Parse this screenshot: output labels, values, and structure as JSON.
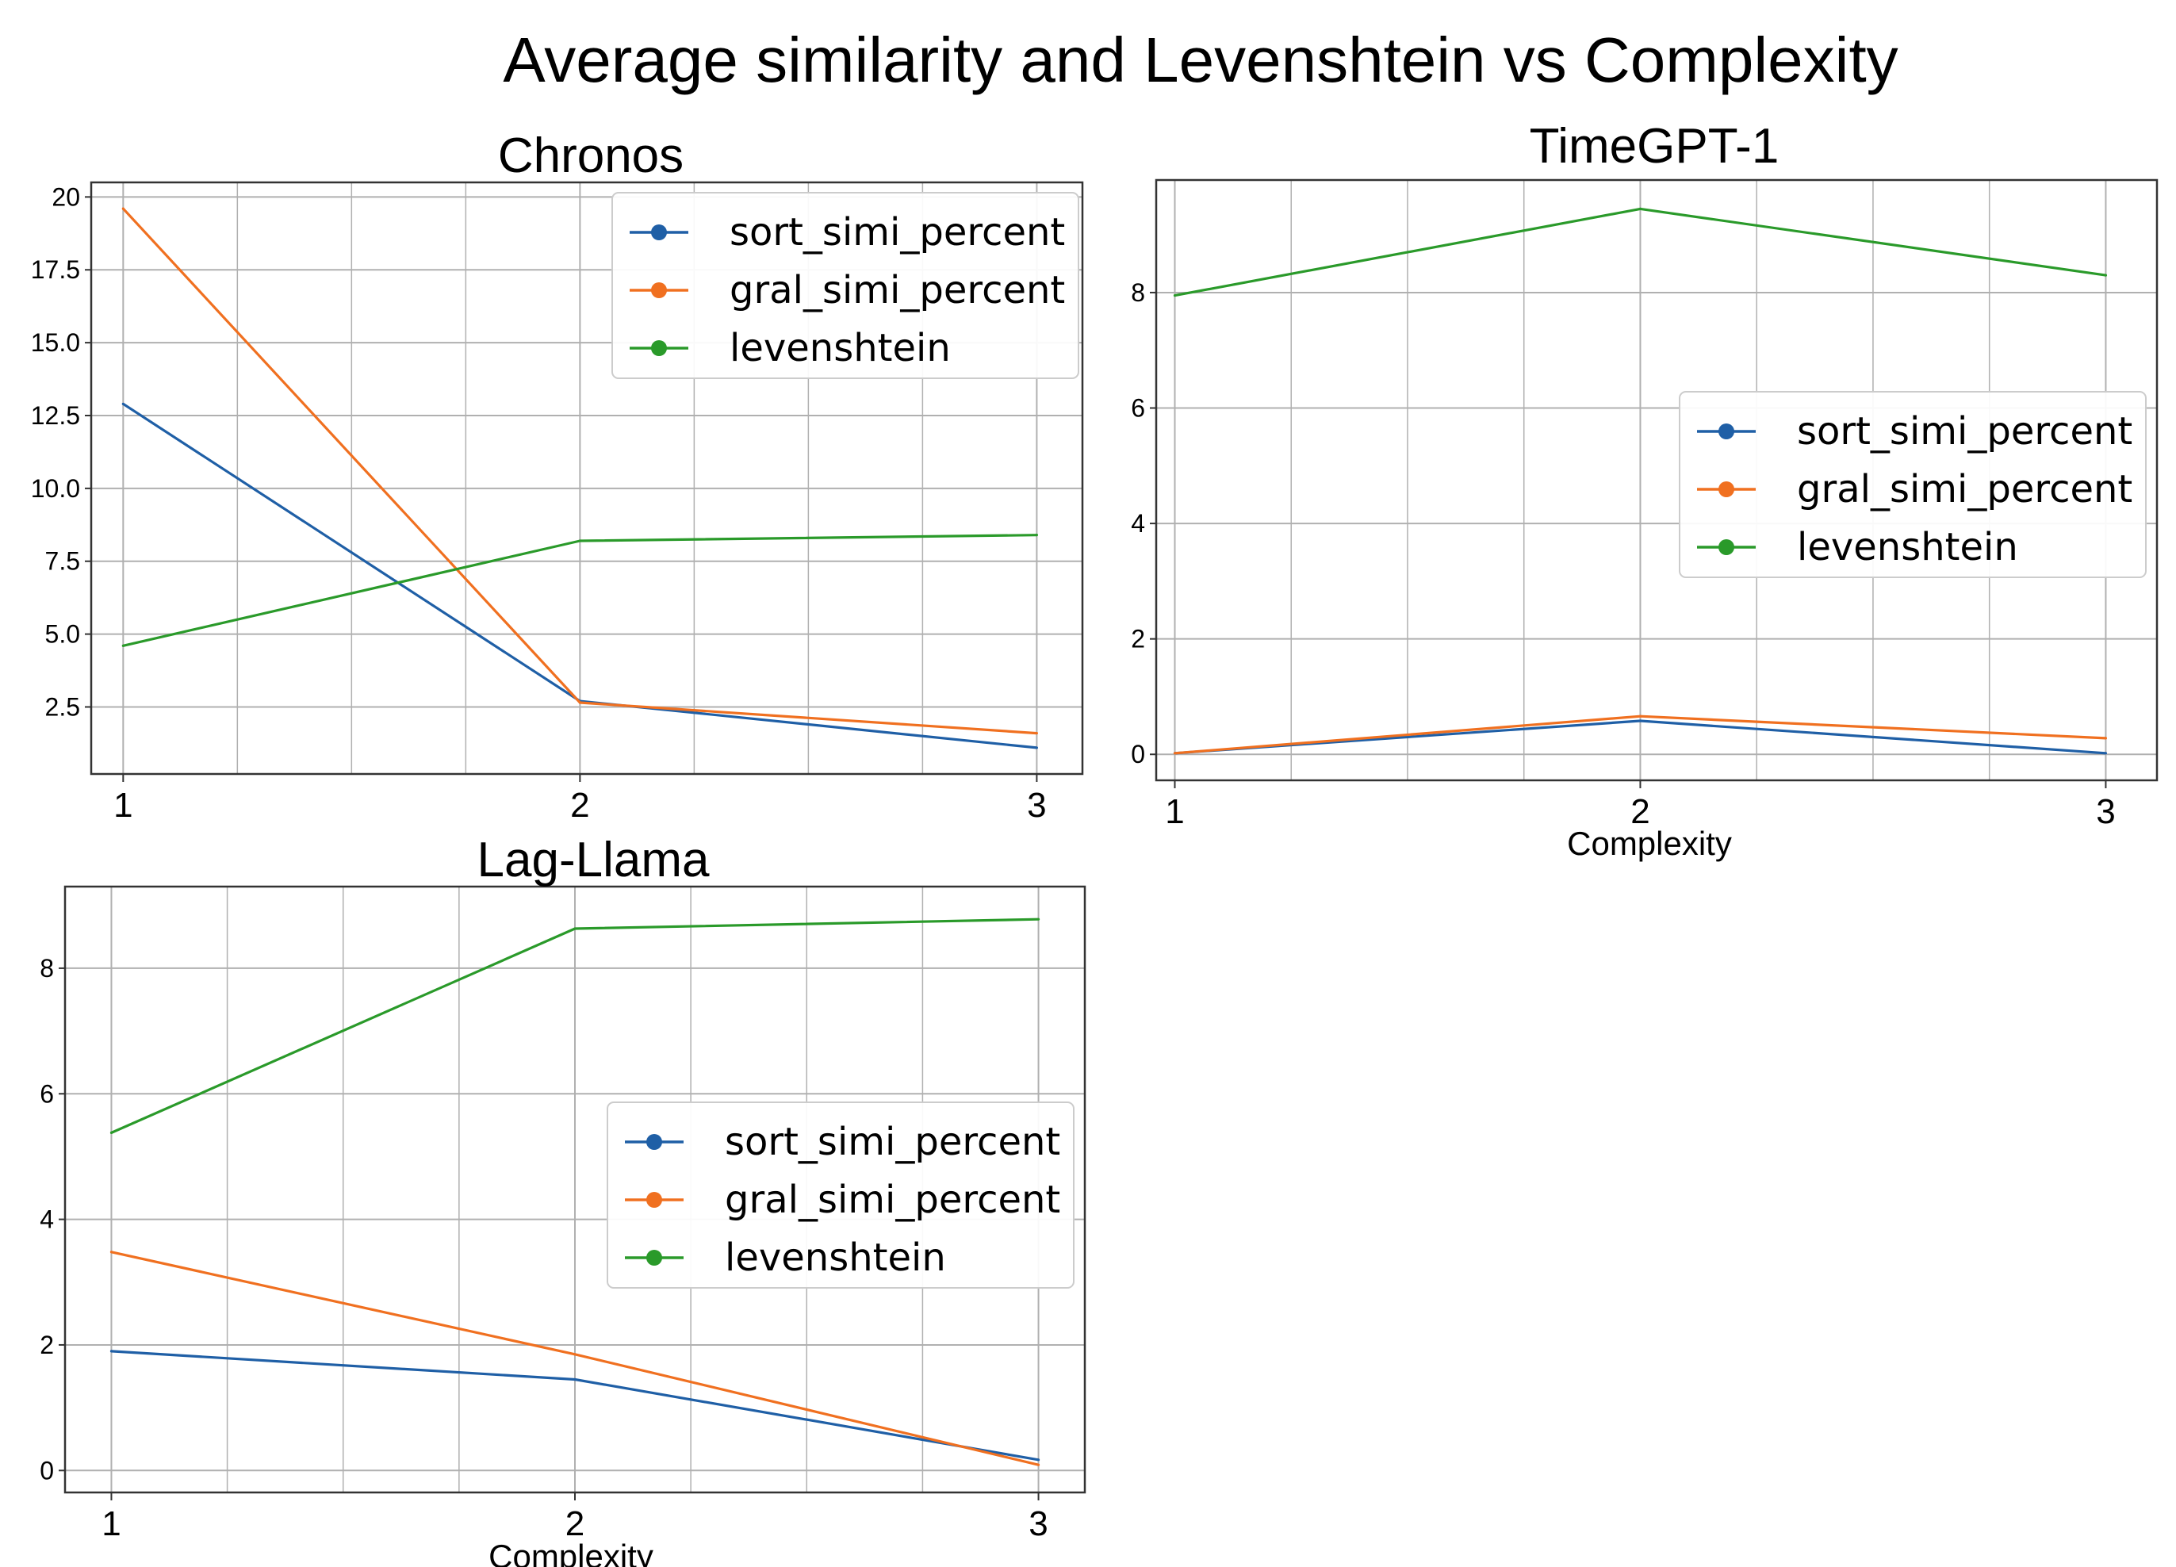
{
  "figure": {
    "title": "Average similarity and Levenshtein vs Complexity"
  },
  "colors": {
    "sort_simi_percent": "#1f5fa6",
    "gral_simi_percent": "#f07020",
    "levenshtein": "#2a9a2a",
    "grid": "#b0b0b0",
    "axis": "#333333"
  },
  "chart_data": [
    {
      "type": "line",
      "title": "Chronos",
      "xlabel": "",
      "ylabel": "",
      "x": [
        1,
        2,
        3
      ],
      "xticks": [
        "1",
        "2",
        "3"
      ],
      "yticks": [
        "2.5",
        "5.0",
        "7.5",
        "10.0",
        "12.5",
        "15.0",
        "17.5",
        "20"
      ],
      "ytick_values": [
        2.5,
        5.0,
        7.5,
        10.0,
        12.5,
        15.0,
        17.5,
        20.0
      ],
      "xlim": [
        0.93,
        3.1
      ],
      "ylim": [
        0.2,
        20.5
      ],
      "grid": true,
      "legend_position": "top-right",
      "series": [
        {
          "name": "sort_simi_percent",
          "values": [
            12.9,
            2.7,
            1.1
          ]
        },
        {
          "name": "gral_simi_percent",
          "values": [
            19.6,
            2.65,
            1.6
          ]
        },
        {
          "name": "levenshtein",
          "values": [
            4.6,
            8.2,
            8.4
          ]
        }
      ]
    },
    {
      "type": "line",
      "title": "TimeGPT-1",
      "xlabel": "Complexity",
      "ylabel": "",
      "x": [
        1,
        2,
        3
      ],
      "xticks": [
        "1",
        "2",
        "3"
      ],
      "yticks": [
        "0",
        "2",
        "4",
        "6",
        "8"
      ],
      "ytick_values": [
        0,
        2,
        4,
        6,
        8
      ],
      "xlim": [
        0.96,
        3.11
      ],
      "ylim": [
        -0.45,
        9.95
      ],
      "grid": true,
      "legend_position": "center-right",
      "series": [
        {
          "name": "sort_simi_percent",
          "values": [
            0.02,
            0.58,
            0.02
          ]
        },
        {
          "name": "gral_simi_percent",
          "values": [
            0.02,
            0.66,
            0.28
          ]
        },
        {
          "name": "levenshtein",
          "values": [
            7.95,
            9.45,
            8.3
          ]
        }
      ]
    },
    {
      "type": "line",
      "title": "Lag-Llama",
      "xlabel": "Complexity",
      "ylabel": "",
      "x": [
        1,
        2,
        3
      ],
      "xticks": [
        "1",
        "2",
        "3"
      ],
      "yticks": [
        "0",
        "2",
        "4",
        "6",
        "8"
      ],
      "ytick_values": [
        0,
        2,
        4,
        6,
        8
      ],
      "xlim": [
        0.9,
        3.1
      ],
      "ylim": [
        -0.35,
        9.3
      ],
      "grid": true,
      "legend_position": "center-right",
      "series": [
        {
          "name": "sort_simi_percent",
          "values": [
            1.9,
            1.45,
            0.17
          ]
        },
        {
          "name": "gral_simi_percent",
          "values": [
            3.48,
            1.85,
            0.09
          ]
        },
        {
          "name": "levenshtein",
          "values": [
            5.38,
            8.63,
            8.78
          ]
        }
      ]
    }
  ]
}
